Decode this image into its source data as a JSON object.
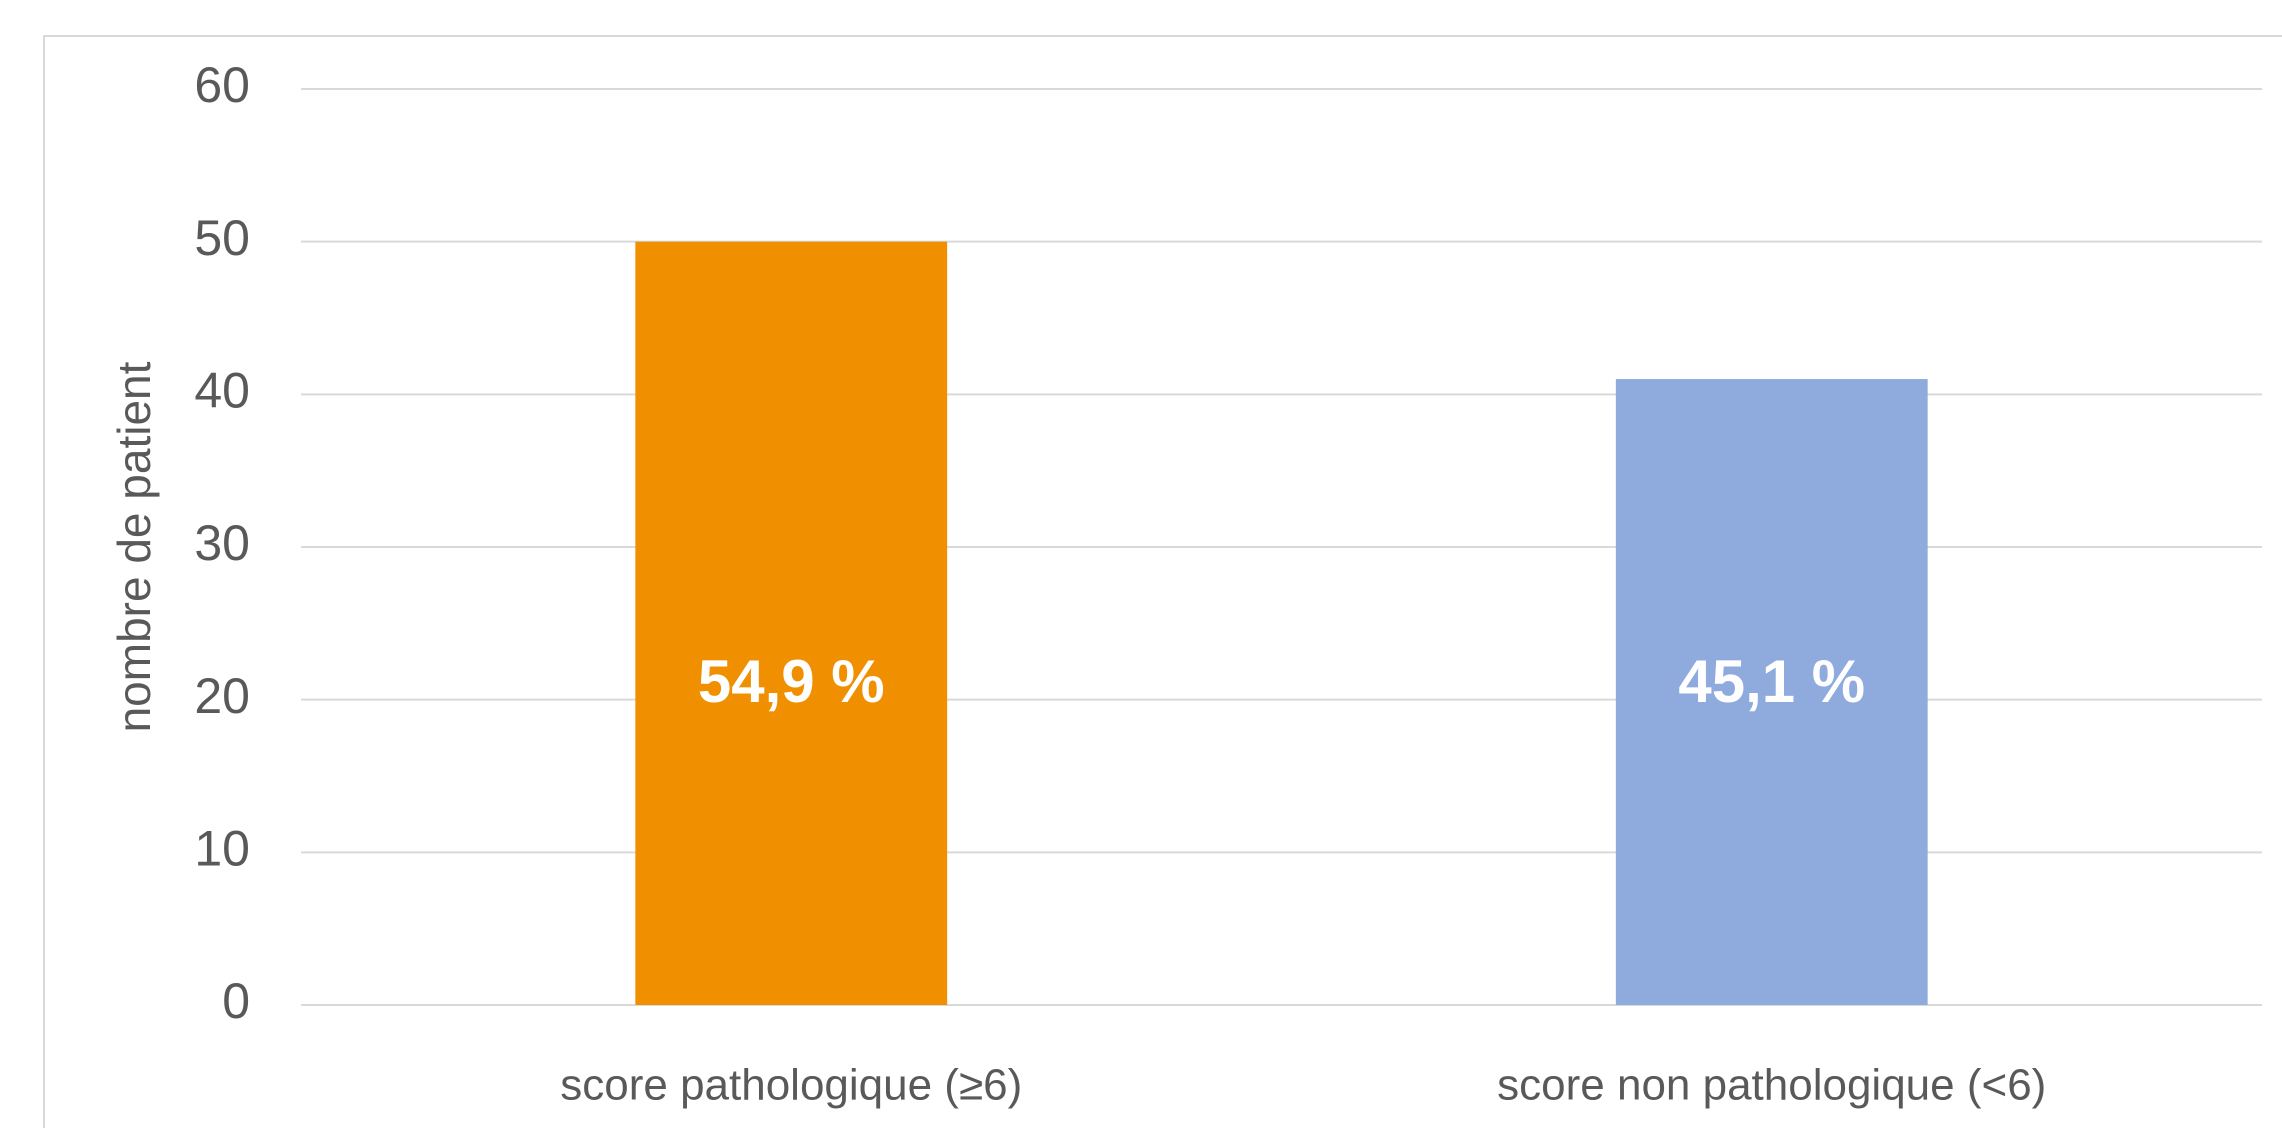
{
  "chart_data": {
    "type": "bar",
    "y_axis_label": "nombre de patient",
    "categories": [
      "score pathologique (≥6)",
      "score non pathologique (<6)"
    ],
    "values": [
      50,
      41
    ],
    "colors": [
      "#f09000",
      "#8faadc"
    ],
    "percent_labels": [
      "54,9 %",
      "45,1 %"
    ],
    "ylim": [
      0,
      60
    ],
    "yticks": [
      0,
      10,
      20,
      30,
      40,
      50,
      60
    ],
    "grid": true
  }
}
